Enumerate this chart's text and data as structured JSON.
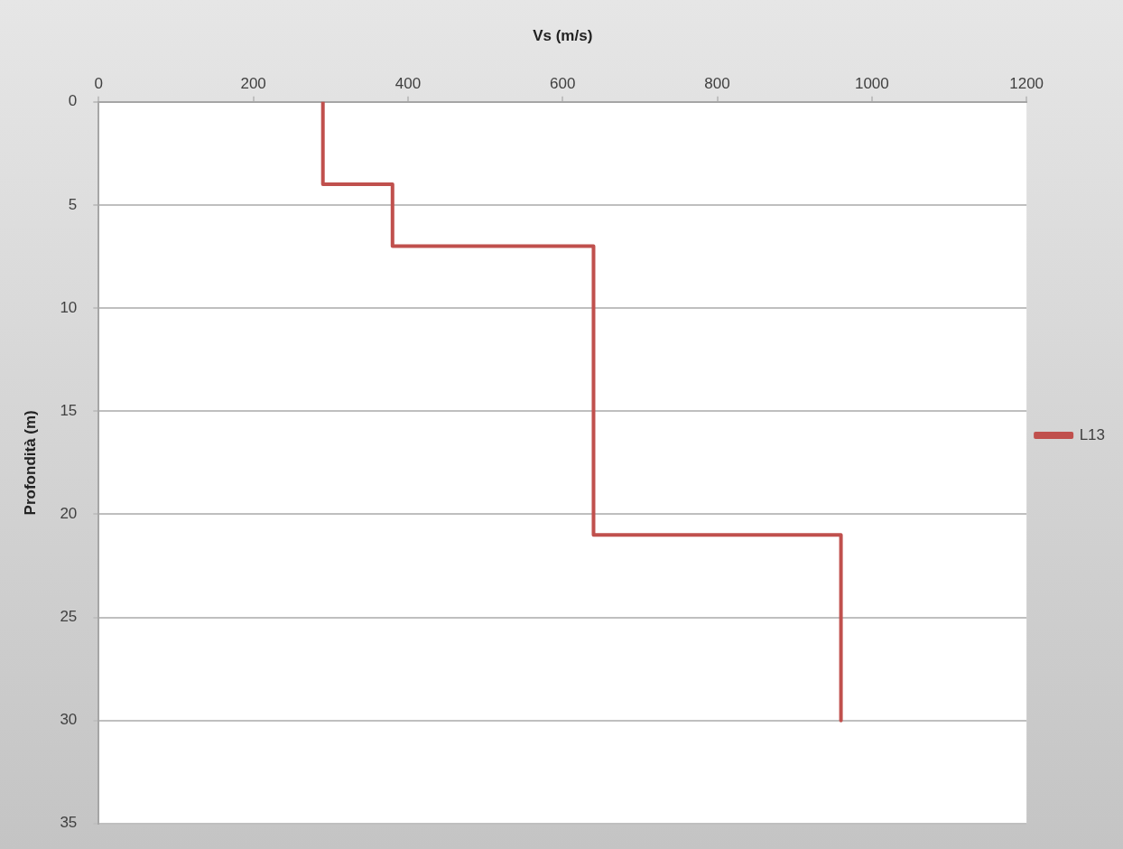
{
  "chart_data": {
    "type": "line",
    "xlabel": "Vs (m/s)",
    "ylabel": "Profondità (m)",
    "xlim": [
      0,
      1200
    ],
    "xticks": [
      0,
      200,
      400,
      600,
      800,
      1000,
      1200
    ],
    "ylim": [
      35,
      0
    ],
    "yticks": [
      0,
      5,
      10,
      15,
      20,
      25,
      30,
      35
    ],
    "grid": "y",
    "legend": "right",
    "marker": "none",
    "series": [
      {
        "name": "L13",
        "color": "#c0504d",
        "x": [
          290,
          290,
          380,
          380,
          640,
          640,
          960,
          960
        ],
        "values": [
          0,
          4,
          4,
          7,
          7,
          21,
          21,
          30
        ]
      }
    ]
  }
}
